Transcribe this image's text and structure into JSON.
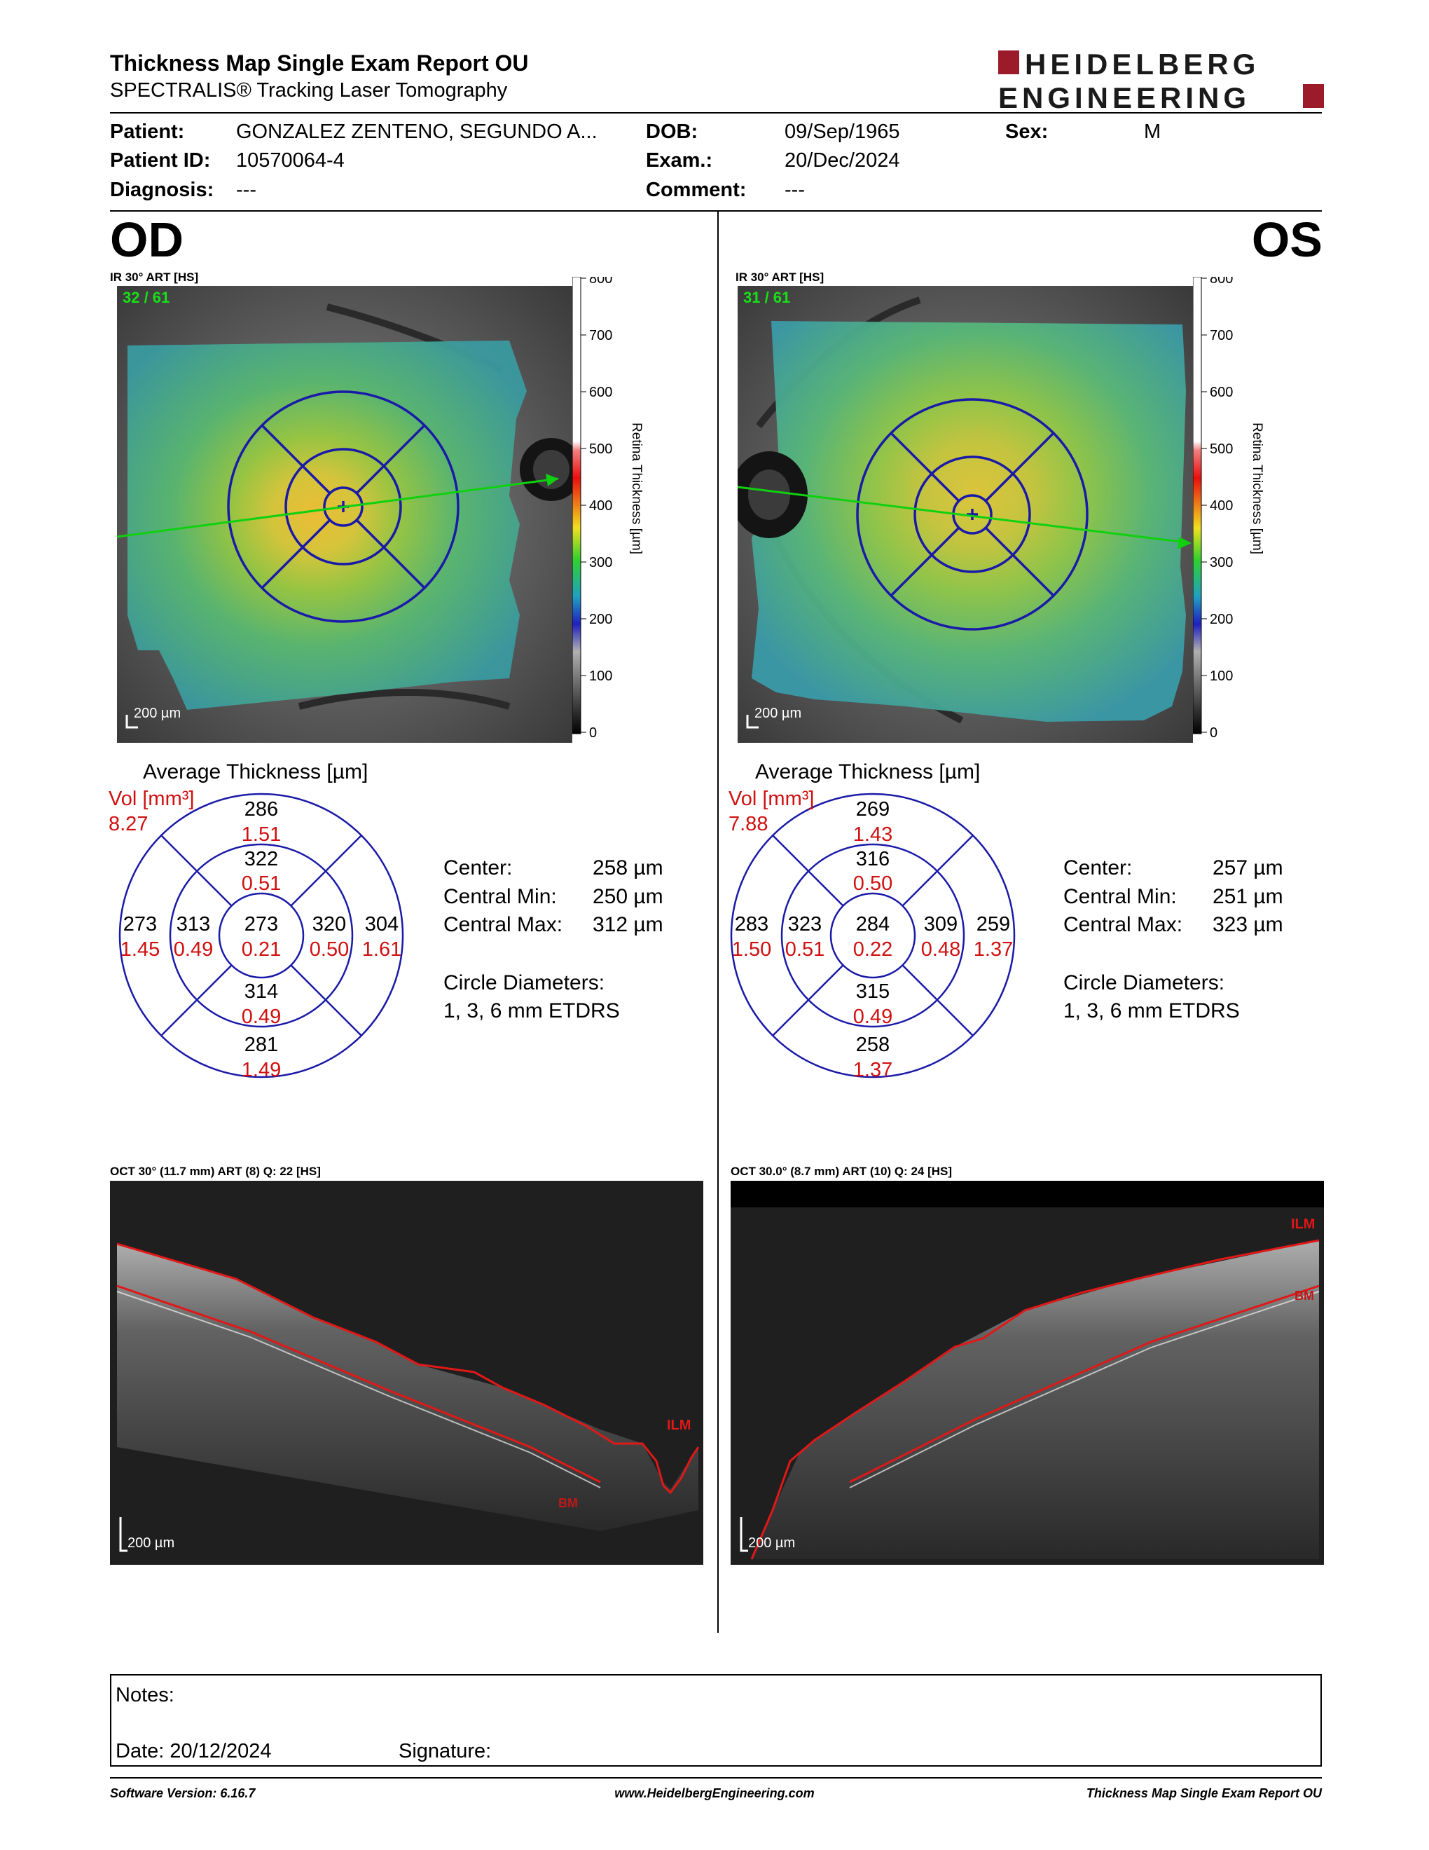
{
  "header": {
    "title": "Thickness Map Single Exam Report OU",
    "subtitle": "SPECTRALIS® Tracking Laser Tomography",
    "logo_line1": "HEIDELBERG",
    "logo_line2": "ENGINEERING"
  },
  "patient": {
    "patient_label": "Patient:",
    "patient_value": "GONZALEZ ZENTENO, SEGUNDO A...",
    "dob_label": "DOB:",
    "dob_value": "09/Sep/1965",
    "sex_label": "Sex:",
    "sex_value": "M",
    "id_label": "Patient ID:",
    "id_value": "10570064-4",
    "exam_label": "Exam.:",
    "exam_value": "20/Dec/2024",
    "diagnosis_label": "Diagnosis:",
    "diagnosis_value": "---",
    "comment_label": "Comment:",
    "comment_value": "---"
  },
  "od": {
    "eye": "OD",
    "map_label": "IR 30° ART [HS]",
    "frame_count": "32 / 61",
    "scale_label": "200 µm",
    "avg_title": "Average Thickness [µm]",
    "vol_label": "Vol [mm³]",
    "vol_total": "8.27",
    "sectors": {
      "center": {
        "t": "273",
        "v": "0.21"
      },
      "inner_sup": {
        "t": "322",
        "v": "0.51"
      },
      "inner_inf": {
        "t": "314",
        "v": "0.49"
      },
      "inner_left": {
        "t": "313",
        "v": "0.49"
      },
      "inner_right": {
        "t": "320",
        "v": "0.50"
      },
      "outer_sup": {
        "t": "286",
        "v": "1.51"
      },
      "outer_inf": {
        "t": "281",
        "v": "1.49"
      },
      "outer_left": {
        "t": "273",
        "v": "1.45"
      },
      "outer_right": {
        "t": "304",
        "v": "1.61"
      }
    },
    "center_label": "Center:",
    "center_value": "258 µm",
    "cmin_label": "Central Min:",
    "cmin_value": "250 µm",
    "cmax_label": "Central Max:",
    "cmax_value": "312 µm",
    "circle_label": "Circle Diameters:",
    "circle_value": "1, 3, 6 mm ETDRS",
    "oct_label": "OCT 30° (11.7 mm) ART (8) Q: 22 [HS]",
    "oct_scale": "200 µm",
    "ilm": "ILM",
    "bm": "BM"
  },
  "os": {
    "eye": "OS",
    "map_label": "IR 30° ART [HS]",
    "frame_count": "31 / 61",
    "scale_label": "200 µm",
    "avg_title": "Average Thickness [µm]",
    "vol_label": "Vol [mm³]",
    "vol_total": "7.88",
    "sectors": {
      "center": {
        "t": "284",
        "v": "0.22"
      },
      "inner_sup": {
        "t": "316",
        "v": "0.50"
      },
      "inner_inf": {
        "t": "315",
        "v": "0.49"
      },
      "inner_left": {
        "t": "323",
        "v": "0.51"
      },
      "inner_right": {
        "t": "309",
        "v": "0.48"
      },
      "outer_sup": {
        "t": "269",
        "v": "1.43"
      },
      "outer_inf": {
        "t": "258",
        "v": "1.37"
      },
      "outer_left": {
        "t": "283",
        "v": "1.50"
      },
      "outer_right": {
        "t": "259",
        "v": "1.37"
      }
    },
    "center_label": "Center:",
    "center_value": "257 µm",
    "cmin_label": "Central Min:",
    "cmin_value": "251 µm",
    "cmax_label": "Central Max:",
    "cmax_value": "323 µm",
    "circle_label": "Circle Diameters:",
    "circle_value": "1, 3, 6 mm ETDRS",
    "oct_label": "OCT 30.0° (8.7 mm) ART (10) Q: 24 [HS]",
    "oct_scale": "200 µm",
    "ilm": "ILM",
    "bm": "BM"
  },
  "colorbar": {
    "title": "Retina  Thickness [µm]",
    "ticks": [
      "800",
      "700",
      "600",
      "500",
      "400",
      "300",
      "200",
      "100",
      "0"
    ]
  },
  "notes": {
    "notes_label": "Notes:",
    "date_label": "Date: 20/12/2024",
    "signature_label": "Signature:"
  },
  "footer": {
    "version": "Software Version: 6.16.7",
    "website": "www.HeidelbergEngineering.com",
    "report": "Thickness Map Single Exam Report OU"
  },
  "colors": {
    "brand": "#9b1b2a",
    "etdrs_grid": "#1a1aa8",
    "volume_text": "#d01010",
    "scan_line": "#10d010"
  }
}
